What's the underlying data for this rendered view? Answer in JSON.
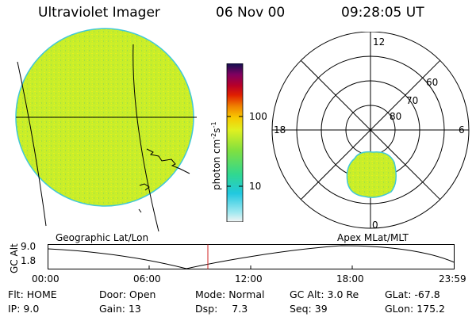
{
  "header": {
    "instrument": "Ultraviolet Imager",
    "date": "06 Nov 00",
    "time": "09:28:05 UT"
  },
  "colors": {
    "background": "#ffffff",
    "auroral_fill": "#c8ee2a",
    "limb": "#40c8d8"
  },
  "left_image": {
    "caption": "Geographic Lat/Lon"
  },
  "right_image": {
    "caption": "Apex MLat/MLT",
    "mlt_labels": {
      "top": "12",
      "left": "18",
      "right": "6",
      "bottom": "0"
    },
    "lat_labels": [
      "60",
      "70",
      "80"
    ]
  },
  "colorbar": {
    "unit": "photon cm",
    "unit_exp1": "-2",
    "unit_mid": "s",
    "unit_exp2": "-1",
    "tick_labels": [
      "100",
      "10"
    ]
  },
  "altitude_strip": {
    "axis_label": "GC Alt",
    "ymax_label": "9.0",
    "ymin_label": "1.8",
    "time_labels": [
      "00:00",
      "06:00",
      "12:00",
      "18:00",
      "23:59"
    ]
  },
  "status": {
    "row1": [
      {
        "label": "Flt:",
        "value": "HOME"
      },
      {
        "label": "Door:",
        "value": "Open"
      },
      {
        "label": "Mode:",
        "value": "Normal"
      },
      {
        "label": "GC Alt:",
        "value": "3.0 Re"
      },
      {
        "label": "GLat:",
        "value": "-67.8"
      }
    ],
    "row2": [
      {
        "label": "IP:",
        "value": "9.0"
      },
      {
        "label": "Gain:",
        "value": "13"
      },
      {
        "label": "Dsp:",
        "value": "7.3"
      },
      {
        "label": "Seq:",
        "value": "39"
      },
      {
        "label": "GLon:",
        "value": "175.2"
      }
    ]
  }
}
